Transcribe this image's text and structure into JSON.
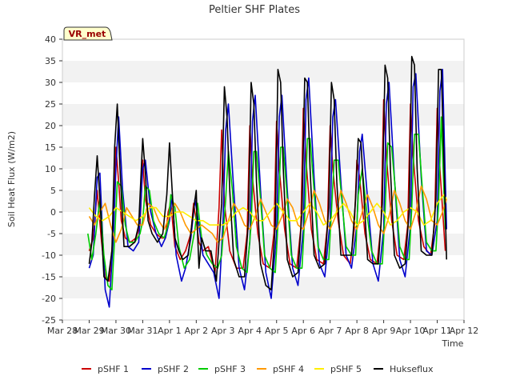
{
  "chart_data": {
    "type": "line",
    "title": "Peltier SHF Plates",
    "xlabel": "Time",
    "ylabel": "Soil Heat Flux (W/m2)",
    "site_label": "VR_met",
    "xlim": [
      0,
      15
    ],
    "ylim": [
      -25,
      40
    ],
    "x_ticks": [
      {
        "v": 0,
        "label": "Mar 28"
      },
      {
        "v": 1,
        "label": "Mar 29"
      },
      {
        "v": 2,
        "label": "Mar 30"
      },
      {
        "v": 3,
        "label": "Mar 31"
      },
      {
        "v": 4,
        "label": "Apr 1"
      },
      {
        "v": 5,
        "label": "Apr 2"
      },
      {
        "v": 6,
        "label": "Apr 3"
      },
      {
        "v": 7,
        "label": "Apr 4"
      },
      {
        "v": 8,
        "label": "Apr 5"
      },
      {
        "v": 9,
        "label": "Apr 6"
      },
      {
        "v": 10,
        "label": "Apr 7"
      },
      {
        "v": 11,
        "label": "Apr 8"
      },
      {
        "v": 12,
        "label": "Apr 9"
      },
      {
        "v": 13,
        "label": "Apr 10"
      },
      {
        "v": 14,
        "label": "Apr 11"
      },
      {
        "v": 15,
        "label": "Apr 12"
      }
    ],
    "y_ticks": [
      -25,
      -20,
      -15,
      -10,
      -5,
      0,
      5,
      10,
      15,
      20,
      25,
      30,
      35,
      40
    ],
    "grid": "horizontal alternating bands",
    "legend_position": "bottom",
    "series": [
      {
        "name": "pSHF 1",
        "color": "#cc0000",
        "x": [
          1.0,
          1.15,
          1.3,
          1.45,
          1.6,
          1.75,
          1.9,
          2.0,
          2.1,
          2.2,
          2.35,
          2.55,
          2.75,
          2.9,
          3.0,
          3.1,
          3.3,
          3.5,
          3.7,
          3.85,
          3.95,
          4.05,
          4.2,
          4.4,
          4.6,
          4.8,
          4.9,
          5.0,
          5.1,
          5.25,
          5.45,
          5.7,
          5.85,
          5.95,
          6.05,
          6.25,
          6.5,
          6.75,
          6.9,
          7.0,
          7.1,
          7.3,
          7.5,
          7.75,
          7.9,
          8.0,
          8.1,
          8.3,
          8.5,
          8.75,
          8.9,
          9.0,
          9.1,
          9.3,
          9.5,
          9.75,
          9.9,
          10.0,
          10.1,
          10.3,
          10.5,
          10.75,
          10.9,
          11.0,
          11.1,
          11.3,
          11.5,
          11.75,
          11.9,
          12.0,
          12.1,
          12.3,
          12.5,
          12.75,
          12.9,
          13.0,
          13.1,
          13.3,
          13.5,
          13.75,
          13.9,
          14.0,
          14.1,
          14.3
        ],
        "y": [
          -9,
          -6,
          5,
          -6,
          -15,
          -16,
          -5,
          15,
          7,
          -2,
          -6,
          -7,
          -6,
          -3,
          12,
          3,
          -3,
          -5,
          -6,
          -6,
          0,
          2,
          -8,
          -11,
          -9,
          -5,
          2,
          -2,
          -7,
          -9,
          -8,
          -14,
          1,
          19,
          2,
          -9,
          -13,
          -13,
          -5,
          20,
          8,
          -5,
          -12,
          -13,
          -5,
          21,
          10,
          -4,
          -12,
          -13,
          -4,
          24,
          12,
          -4,
          -11,
          -12,
          -3,
          20,
          10,
          -2,
          -10,
          -12,
          -4,
          12,
          8,
          -5,
          -11,
          -12,
          -3,
          26,
          13,
          -2,
          -10,
          -11,
          -3,
          25,
          13,
          -2,
          -8,
          -10,
          -3,
          24,
          10,
          -9
        ]
      },
      {
        "name": "pSHF 2",
        "color": "#0000cc",
        "x": [
          1.0,
          1.15,
          1.3,
          1.4,
          1.5,
          1.6,
          1.75,
          1.9,
          2.0,
          2.1,
          2.25,
          2.45,
          2.65,
          2.85,
          3.0,
          3.1,
          3.3,
          3.5,
          3.7,
          3.85,
          4.0,
          4.1,
          4.25,
          4.45,
          4.6,
          4.8,
          4.95,
          5.1,
          5.25,
          5.45,
          5.65,
          5.85,
          6.0,
          6.1,
          6.2,
          6.4,
          6.6,
          6.8,
          7.0,
          7.1,
          7.2,
          7.4,
          7.6,
          7.8,
          8.0,
          8.1,
          8.2,
          8.4,
          8.6,
          8.8,
          9.0,
          9.1,
          9.2,
          9.4,
          9.6,
          9.8,
          10.0,
          10.1,
          10.2,
          10.4,
          10.6,
          10.8,
          11.0,
          11.1,
          11.2,
          11.4,
          11.6,
          11.8,
          12.0,
          12.1,
          12.2,
          12.4,
          12.6,
          12.8,
          13.0,
          13.1,
          13.2,
          13.4,
          13.6,
          13.8,
          14.0,
          14.1,
          14.2,
          14.35
        ],
        "y": [
          -13,
          -10,
          8,
          9,
          -5,
          -18,
          -22,
          -6,
          10,
          22,
          5,
          -8,
          -9,
          -7,
          10,
          12,
          0,
          -5,
          -8,
          -6,
          -2,
          4,
          -10,
          -16,
          -13,
          -6,
          3,
          -3,
          -10,
          -12,
          -14,
          -20,
          -2,
          19,
          25,
          5,
          -13,
          -18,
          -7,
          21,
          27,
          5,
          -14,
          -20,
          -5,
          22,
          27,
          5,
          -13,
          -17,
          -4,
          26,
          31,
          8,
          -12,
          -15,
          -2,
          22,
          26,
          7,
          -10,
          -13,
          -3,
          14,
          18,
          3,
          -12,
          -16,
          -4,
          25,
          30,
          8,
          -11,
          -15,
          -3,
          29,
          32,
          8,
          -9,
          -10,
          -2,
          28,
          33,
          -4
        ]
      },
      {
        "name": "pSHF 3",
        "color": "#00cc00",
        "x": [
          0.95,
          1.1,
          1.25,
          1.4,
          1.55,
          1.7,
          1.85,
          1.95,
          2.05,
          2.2,
          2.35,
          2.5,
          2.7,
          2.9,
          3.0,
          3.1,
          3.25,
          3.4,
          3.6,
          3.8,
          3.95,
          4.05,
          4.2,
          4.35,
          4.55,
          4.75,
          4.95,
          5.05,
          5.2,
          5.4,
          5.6,
          5.8,
          5.95,
          6.1,
          6.2,
          6.35,
          6.5,
          6.7,
          6.9,
          7.05,
          7.15,
          7.25,
          7.4,
          7.55,
          7.75,
          7.95,
          8.05,
          8.15,
          8.25,
          8.4,
          8.55,
          8.75,
          8.95,
          9.05,
          9.15,
          9.25,
          9.4,
          9.55,
          9.75,
          9.95,
          10.05,
          10.15,
          10.3,
          10.45,
          10.6,
          10.8,
          10.95,
          11.05,
          11.2,
          11.35,
          11.55,
          11.75,
          11.95,
          12.05,
          12.15,
          12.3,
          12.45,
          12.6,
          12.8,
          12.95,
          13.05,
          13.15,
          13.3,
          13.45,
          13.6,
          13.8,
          13.95,
          14.05,
          14.15,
          14.3
        ],
        "y": [
          -5,
          -11,
          -5,
          3,
          -10,
          -17,
          -18,
          -6,
          7,
          6,
          -3,
          -7,
          -7,
          -5,
          -2,
          6,
          5,
          -2,
          -5,
          -6,
          -3,
          4,
          1,
          -8,
          -13,
          -11,
          -4,
          2,
          -6,
          -10,
          -12,
          -13,
          -10,
          3,
          14,
          5,
          -8,
          -13,
          -14,
          -3,
          14,
          14,
          3,
          -10,
          -13,
          -14,
          -3,
          15,
          15,
          3,
          -10,
          -13,
          -13,
          -1,
          17,
          17,
          5,
          -8,
          -11,
          -11,
          0,
          12,
          12,
          2,
          -8,
          -10,
          -10,
          4,
          10,
          1,
          -9,
          -12,
          -12,
          0,
          16,
          15,
          4,
          -8,
          -11,
          -11,
          1,
          18,
          18,
          5,
          -7,
          -9,
          -9,
          2,
          22,
          -4
        ]
      },
      {
        "name": "pSHF 4",
        "color": "#ff9900",
        "x": [
          1.0,
          1.2,
          1.4,
          1.6,
          1.8,
          2.0,
          2.2,
          2.4,
          2.6,
          2.8,
          3.0,
          3.2,
          3.4,
          3.6,
          3.8,
          4.0,
          4.2,
          4.4,
          4.6,
          4.8,
          5.0,
          5.2,
          5.4,
          5.6,
          5.8,
          6.0,
          6.2,
          6.4,
          6.6,
          6.8,
          7.0,
          7.2,
          7.4,
          7.6,
          7.8,
          8.0,
          8.2,
          8.4,
          8.6,
          8.8,
          9.0,
          9.2,
          9.4,
          9.6,
          9.8,
          10.0,
          10.2,
          10.4,
          10.6,
          10.8,
          11.0,
          11.2,
          11.4,
          11.6,
          11.8,
          12.0,
          12.2,
          12.4,
          12.6,
          12.8,
          13.0,
          13.2,
          13.4,
          13.6,
          13.8,
          14.0,
          14.2,
          14.35
        ],
        "y": [
          -1,
          -3,
          0,
          2,
          -3,
          -7,
          -4,
          1,
          -1,
          -3,
          -3,
          2,
          1,
          -2,
          -4,
          -1,
          2,
          0,
          -3,
          -5,
          -4,
          -3,
          -4,
          -5,
          -7,
          -6,
          -2,
          2,
          0,
          -3,
          -4,
          -1,
          3,
          0,
          -3,
          -4,
          -1,
          3,
          1,
          -3,
          -4,
          0,
          5,
          2,
          -2,
          -4,
          -1,
          5,
          2,
          -2,
          -4,
          0,
          4,
          1,
          -3,
          -5,
          -1,
          5,
          2,
          -2,
          -4,
          0,
          6,
          3,
          -2,
          -3,
          0,
          3
        ]
      },
      {
        "name": "pSHF 5",
        "color": "#ffee00",
        "x": [
          1.0,
          1.25,
          1.5,
          1.75,
          2.0,
          2.25,
          2.5,
          2.75,
          3.0,
          3.25,
          3.5,
          3.75,
          4.0,
          4.25,
          4.5,
          4.75,
          5.0,
          5.25,
          5.5,
          5.75,
          6.0,
          6.25,
          6.5,
          6.75,
          7.0,
          7.25,
          7.5,
          7.75,
          8.0,
          8.25,
          8.5,
          8.75,
          9.0,
          9.25,
          9.5,
          9.75,
          10.0,
          10.25,
          10.5,
          10.75,
          11.0,
          11.25,
          11.5,
          11.75,
          12.0,
          12.25,
          12.5,
          12.75,
          13.0,
          13.25,
          13.5,
          13.75,
          14.0,
          14.25,
          14.35
        ],
        "y": [
          1,
          -1,
          -2,
          -1,
          1,
          0,
          -1,
          -2,
          -1,
          1,
          1,
          -1,
          -1,
          0,
          0,
          -1,
          -2,
          -2,
          -3,
          -3,
          -3,
          -2,
          0,
          1,
          0,
          -2,
          -2,
          0,
          2,
          0,
          -2,
          -2,
          0,
          2,
          0,
          -3,
          -2,
          0,
          2,
          0,
          -3,
          -2,
          0,
          2,
          0,
          -3,
          -2,
          0,
          1,
          0,
          -3,
          -2,
          2,
          4,
          3
        ]
      },
      {
        "name": "Hukseflux",
        "color": "#000000",
        "x": [
          1.0,
          1.1,
          1.2,
          1.3,
          1.4,
          1.55,
          1.7,
          1.85,
          1.95,
          2.05,
          2.15,
          2.3,
          2.5,
          2.7,
          2.85,
          3.0,
          3.1,
          3.2,
          3.35,
          3.55,
          3.75,
          3.9,
          4.0,
          4.1,
          4.2,
          4.35,
          4.5,
          4.7,
          4.85,
          5.0,
          5.05,
          5.1,
          5.2,
          5.35,
          5.55,
          5.75,
          5.95,
          6.05,
          6.15,
          6.25,
          6.4,
          6.6,
          6.8,
          6.95,
          7.05,
          7.15,
          7.25,
          7.4,
          7.6,
          7.8,
          7.95,
          8.05,
          8.15,
          8.25,
          8.4,
          8.6,
          8.8,
          8.95,
          9.05,
          9.15,
          9.25,
          9.4,
          9.6,
          9.8,
          9.95,
          10.05,
          10.15,
          10.25,
          10.4,
          10.6,
          10.8,
          10.95,
          11.05,
          11.15,
          11.25,
          11.4,
          11.6,
          11.8,
          11.95,
          12.05,
          12.15,
          12.25,
          12.4,
          12.6,
          12.8,
          12.95,
          13.05,
          13.15,
          13.25,
          13.4,
          13.6,
          13.8,
          13.95,
          14.05,
          14.15,
          14.25,
          14.35
        ],
        "y": [
          -12,
          -7,
          4,
          13,
          3,
          -15,
          -16,
          -9,
          15,
          25,
          10,
          -8,
          -8,
          -7,
          -3,
          17,
          9,
          -2,
          -5,
          -7,
          -5,
          4,
          16,
          5,
          -6,
          -9,
          -11,
          -10,
          -2,
          5,
          -5,
          -13,
          -6,
          -9,
          -9,
          -16,
          2,
          29,
          22,
          5,
          -11,
          -15,
          -15,
          -2,
          30,
          25,
          7,
          -12,
          -17,
          -18,
          -3,
          33,
          30,
          10,
          -11,
          -15,
          -14,
          0,
          31,
          30,
          10,
          -10,
          -13,
          -12,
          1,
          30,
          26,
          7,
          -10,
          -10,
          -10,
          3,
          17,
          16,
          5,
          -11,
          -12,
          -12,
          2,
          34,
          31,
          10,
          -10,
          -13,
          -12,
          0,
          36,
          34,
          10,
          -9,
          -10,
          -10,
          3,
          33,
          33,
          12,
          -11
        ]
      }
    ]
  }
}
